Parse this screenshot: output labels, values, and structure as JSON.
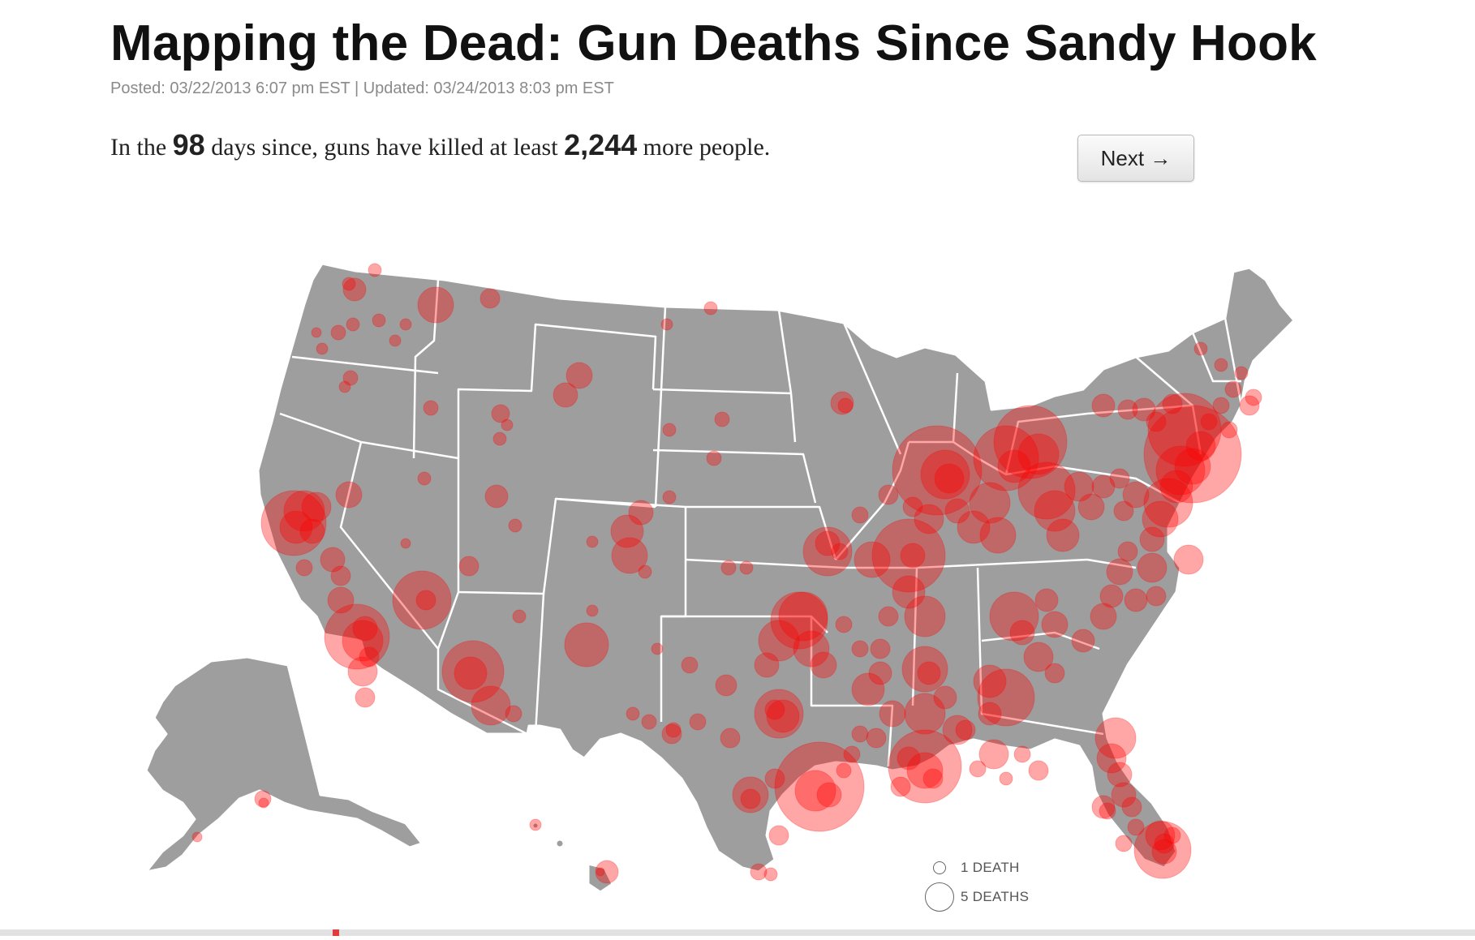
{
  "article": {
    "title": "Mapping the Dead: Gun Deaths Since Sandy Hook",
    "meta": "Posted: 03/22/2013 6:07 pm EST | Updated: 03/24/2013 8:03 pm EST",
    "lede_part1": "In the ",
    "days": "98",
    "lede_part2": " days since, guns have killed at least ",
    "deaths": "2,244",
    "lede_part3": " more people."
  },
  "controls": {
    "next_label": "Next →"
  },
  "legend": {
    "one_label": "1 DEATH",
    "five_label": "5 DEATHS"
  },
  "colors": {
    "land": "#9e9e9e",
    "border": "#ffffff",
    "marker": "#ff0000",
    "background": "#ffffff"
  },
  "map_data": {
    "projection": "albers-usa",
    "regions": [
      "Contiguous United States",
      "Alaska",
      "Hawaii"
    ],
    "markers_note": "red semi-transparent circles sized by number of deaths",
    "deaths_legend": [
      1,
      5
    ]
  }
}
